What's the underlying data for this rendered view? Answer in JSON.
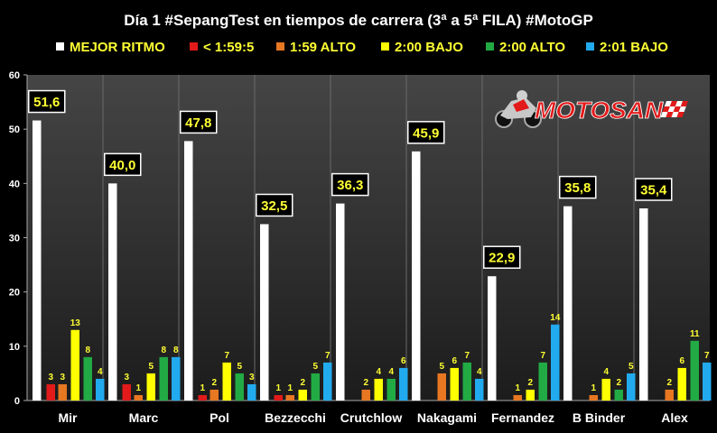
{
  "chart_data": {
    "type": "bar",
    "title": "Día 1 #SepangTest en tiempos de carrera (3ª a 5ª FILA) #MotoGP",
    "categories": [
      "Mir",
      "Marc",
      "Pol",
      "Bezzecchi",
      "Crutchlow",
      "Nakagami",
      "Fernandez",
      "B Binder",
      "Alex"
    ],
    "ylim": [
      0,
      60
    ],
    "yticks": [
      0,
      10,
      20,
      30,
      40,
      50,
      60
    ],
    "grid": false,
    "legend_position": "top",
    "series": [
      {
        "name": "MEJOR RITMO",
        "color": "#ffffff",
        "values": [
          51.6,
          40.0,
          47.8,
          32.5,
          36.3,
          45.9,
          22.9,
          35.8,
          35.4
        ],
        "labels": [
          "51,6",
          "40,0",
          "47,8",
          "32,5",
          "36,3",
          "45,9",
          "22,9",
          "35,8",
          "35,4"
        ]
      },
      {
        "name": "< 1:59:5",
        "color": "#e31a1a",
        "values": [
          3,
          3,
          1,
          1,
          0,
          0,
          0,
          0,
          0
        ],
        "labels": [
          "3",
          "3",
          "1",
          "1",
          "",
          "",
          "",
          "",
          ""
        ]
      },
      {
        "name": "1:59 ALTO",
        "color": "#e87722",
        "values": [
          3,
          1,
          2,
          1,
          2,
          5,
          1,
          1,
          2
        ],
        "labels": [
          "3",
          "1",
          "2",
          "1",
          "2",
          "5",
          "1",
          "1",
          "2"
        ]
      },
      {
        "name": "2:00 BAJO",
        "color": "#ffff00",
        "values": [
          13,
          5,
          7,
          2,
          4,
          6,
          2,
          4,
          6
        ],
        "labels": [
          "13",
          "5",
          "7",
          "2",
          "4",
          "6",
          "2",
          "4",
          "6"
        ]
      },
      {
        "name": "2:00 ALTO",
        "color": "#22aa44",
        "values": [
          8,
          8,
          5,
          5,
          4,
          7,
          7,
          2,
          11
        ],
        "labels": [
          "8",
          "8",
          "5",
          "5",
          "4",
          "7",
          "7",
          "2",
          "11"
        ]
      },
      {
        "name": "2:01 BAJO",
        "color": "#22aaee",
        "values": [
          4,
          8,
          3,
          7,
          6,
          4,
          14,
          5,
          7
        ],
        "labels": [
          "4",
          "8",
          "3",
          "7",
          "6",
          "4",
          "14",
          "5",
          "7"
        ]
      }
    ]
  },
  "logo": {
    "text": "MOTOSAN"
  }
}
